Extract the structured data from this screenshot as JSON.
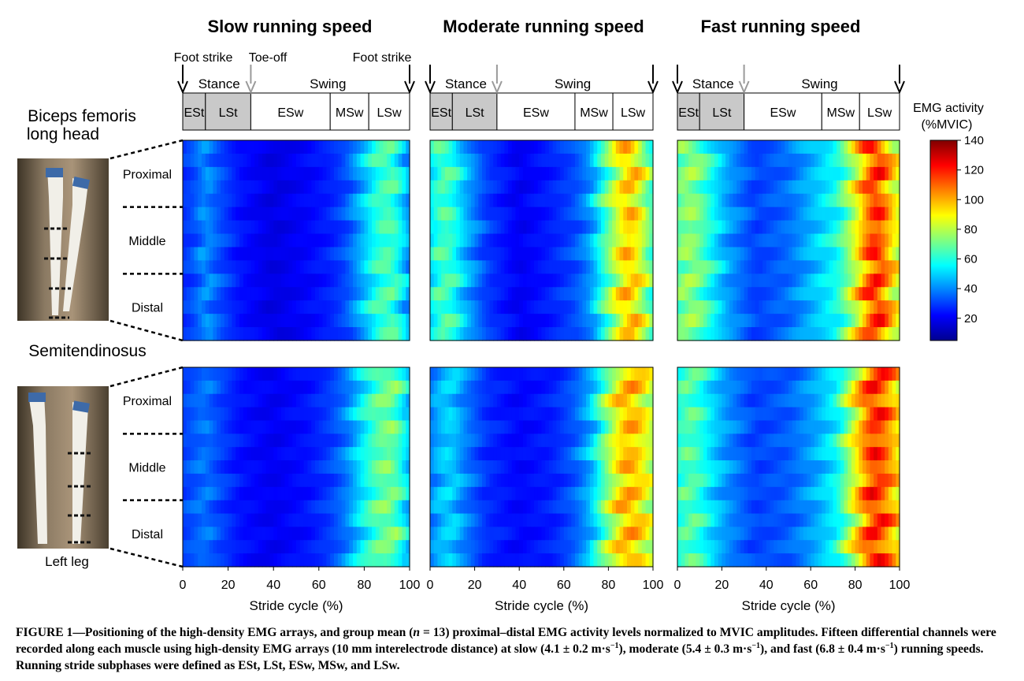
{
  "figure": {
    "speeds": [
      "Slow running speed",
      "Moderate running speed",
      "Fast running speed"
    ],
    "events": {
      "foot_strike": "Foot strike",
      "toe_off": "Toe-off"
    },
    "phases": {
      "stance": "Stance",
      "swing": "Swing"
    },
    "subphases": [
      "ESt",
      "LSt",
      "ESw",
      "MSw",
      "LSw"
    ],
    "subphase_bounds_percent": [
      0,
      10,
      30,
      65,
      82,
      100
    ],
    "muscles": [
      {
        "line1": "Biceps femoris",
        "line2": "long head"
      },
      {
        "line1": "Semitendinosus",
        "line2": ""
      }
    ],
    "regions": [
      "Proximal",
      "Middle",
      "Distal"
    ],
    "photo_label": "Left leg",
    "colorbar": {
      "title1": "EMG activity",
      "title2": "(%MVIC)"
    }
  },
  "chart_data": {
    "type": "heatmap",
    "xlabel": "Stride cycle (%)",
    "xlim": [
      0,
      100
    ],
    "x_ticks": [
      0,
      20,
      40,
      60,
      80,
      100
    ],
    "channels_per_muscle": 15,
    "colorbar_range": [
      5,
      140
    ],
    "colorbar_ticks": [
      20,
      40,
      60,
      80,
      100,
      120,
      140
    ],
    "panels": [
      {
        "muscle": "Biceps femoris long head",
        "speed": "Slow",
        "profile": [
          [
            0,
            28
          ],
          [
            5,
            32
          ],
          [
            10,
            42
          ],
          [
            15,
            34
          ],
          [
            25,
            24
          ],
          [
            40,
            18
          ],
          [
            55,
            22
          ],
          [
            65,
            26
          ],
          [
            72,
            32
          ],
          [
            80,
            48
          ],
          [
            86,
            62
          ],
          [
            92,
            66
          ],
          [
            97,
            52
          ],
          [
            100,
            40
          ]
        ]
      },
      {
        "muscle": "Biceps femoris long head",
        "speed": "Moderate",
        "profile": [
          [
            0,
            52
          ],
          [
            5,
            66
          ],
          [
            10,
            62
          ],
          [
            15,
            48
          ],
          [
            25,
            30
          ],
          [
            40,
            20
          ],
          [
            55,
            26
          ],
          [
            65,
            32
          ],
          [
            72,
            42
          ],
          [
            80,
            70
          ],
          [
            86,
            92
          ],
          [
            90,
            98
          ],
          [
            95,
            84
          ],
          [
            100,
            62
          ]
        ]
      },
      {
        "muscle": "Biceps femoris long head",
        "speed": "Fast",
        "profile": [
          [
            0,
            68
          ],
          [
            5,
            76
          ],
          [
            10,
            70
          ],
          [
            15,
            58
          ],
          [
            22,
            44
          ],
          [
            35,
            30
          ],
          [
            50,
            36
          ],
          [
            62,
            48
          ],
          [
            72,
            58
          ],
          [
            80,
            84
          ],
          [
            86,
            110
          ],
          [
            90,
            118
          ],
          [
            95,
            100
          ],
          [
            100,
            82
          ]
        ]
      },
      {
        "muscle": "Semitendinosus",
        "speed": "Slow",
        "profile": [
          [
            0,
            30
          ],
          [
            5,
            34
          ],
          [
            10,
            38
          ],
          [
            15,
            32
          ],
          [
            25,
            24
          ],
          [
            40,
            20
          ],
          [
            55,
            24
          ],
          [
            65,
            30
          ],
          [
            72,
            38
          ],
          [
            80,
            56
          ],
          [
            86,
            68
          ],
          [
            92,
            72
          ],
          [
            97,
            58
          ],
          [
            100,
            46
          ]
        ]
      },
      {
        "muscle": "Semitendinosus",
        "speed": "Moderate",
        "profile": [
          [
            0,
            38
          ],
          [
            5,
            48
          ],
          [
            10,
            50
          ],
          [
            15,
            40
          ],
          [
            25,
            28
          ],
          [
            40,
            22
          ],
          [
            55,
            26
          ],
          [
            65,
            34
          ],
          [
            72,
            46
          ],
          [
            80,
            76
          ],
          [
            86,
            96
          ],
          [
            90,
            100
          ],
          [
            95,
            92
          ],
          [
            100,
            78
          ]
        ]
      },
      {
        "muscle": "Semitendinosus",
        "speed": "Fast",
        "profile": [
          [
            0,
            60
          ],
          [
            5,
            68
          ],
          [
            10,
            62
          ],
          [
            15,
            52
          ],
          [
            22,
            42
          ],
          [
            35,
            30
          ],
          [
            50,
            34
          ],
          [
            62,
            44
          ],
          [
            72,
            56
          ],
          [
            80,
            88
          ],
          [
            86,
            112
          ],
          [
            90,
            118
          ],
          [
            95,
            106
          ],
          [
            100,
            90
          ]
        ]
      }
    ]
  },
  "caption": {
    "p1": "FIGURE 1—Positioning of the high-density EMG arrays, and group mean (",
    "n_var": "n",
    "p2": " = 13) proximal–distal EMG activity levels normalized to MVIC amplitudes. Fifteen differential channels were recorded along each muscle using high-density EMG arrays (10 mm interelectrode distance) at slow (4.1 ± 0.2 m·s",
    "exp": "−1",
    "p3": "), moderate (5.4 ± 0.3 m·s",
    "p4": "), and fast (6.8 ± 0.4 m·s",
    "p5": ") running speeds. Running stride subphases were defined as ESt, LSt, ESw, MSw, and LSw."
  }
}
